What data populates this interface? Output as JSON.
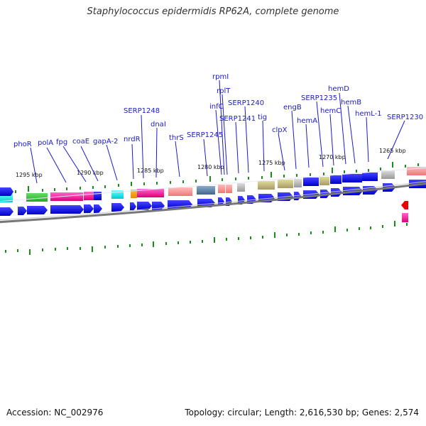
{
  "title": "Staphylococcus epidermidis RP62A, complete genome",
  "footer": {
    "accession": "Accession: NC_002976",
    "summary": "Topology: circular; Length: 2,616,530 bp; Genes: 2,574"
  },
  "colors": {
    "label": "#1a1acc",
    "strand_blue": "#0000ee",
    "tick_green": "#1a8c1a",
    "track_grey": "#777777"
  },
  "kbp_labels": [
    "1295 kbp",
    "1290 kbp",
    "1285 kbp",
    "1280 kbp",
    "1275 kbp",
    "1270 kbp",
    "1265 kbp"
  ],
  "gene_labels": [
    "phoR",
    "polA",
    "fpg",
    "coaE",
    "gapA-2",
    "nrdR",
    "SERP1248",
    "dnaI",
    "thrS",
    "SERP1245",
    "infC",
    "rpmI",
    "rplT",
    "SERP1241",
    "SERP1240",
    "tig",
    "clpX",
    "engB",
    "SERP1235",
    "hemA",
    "hemC",
    "hemD",
    "hemB",
    "hemL-1",
    "SERP1230"
  ]
}
